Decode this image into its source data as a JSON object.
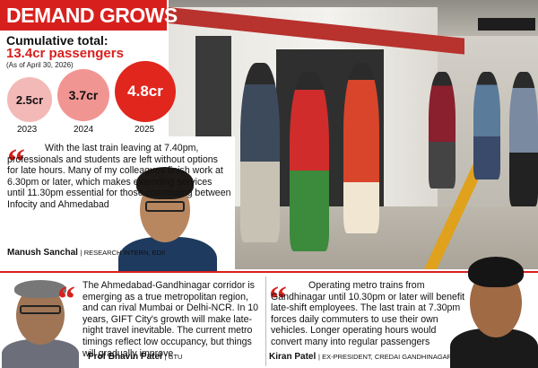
{
  "headline": "DEMAND GROWS",
  "cumulative": {
    "label": "Cumulative total:",
    "value": "13.4cr passengers",
    "as_of": "(As of April 30, 2026)"
  },
  "bubbles": [
    {
      "value": "2.5cr",
      "year": "2023"
    },
    {
      "value": "3.7cr",
      "year": "2024"
    },
    {
      "value": "4.8cr",
      "year": "2025"
    }
  ],
  "quotes": [
    {
      "text": "With the last train leaving at 7.40pm, professionals and students are left without options for late hours. Many of my colleagues finish work at 6.30pm or later, which makes extending services until 11.30pm essential for those commuting between Infocity and Ahmedabad",
      "name": "Manush Sanchal",
      "role": "| RESEARCH INTERN, EDII"
    },
    {
      "text": "The Ahmedabad-Gandhinagar corridor is emerging as a true metropolitan region, and can rival Mumbai or Delhi-NCR. In 10 years, GIFT City's growth will make late-night travel inevitable. The current metro timings reflect low occupancy, but things will gradually improve",
      "name": "Prof Bhavin Patel",
      "role": "| GTU"
    },
    {
      "text": "Operating metro trains from Gandhinagar until 10.30pm or later will benefit late-shift employees. The last train at 7.30pm forces daily commuters to use their own vehicles. Longer operating hours would convert many into regular passengers",
      "name": "Kiran Patel",
      "role": "| EX-PRESIDENT, CREDAI GANDHINAGAR"
    }
  ],
  "quote_mark": "“",
  "colors": {
    "accent": "#d7201e"
  }
}
